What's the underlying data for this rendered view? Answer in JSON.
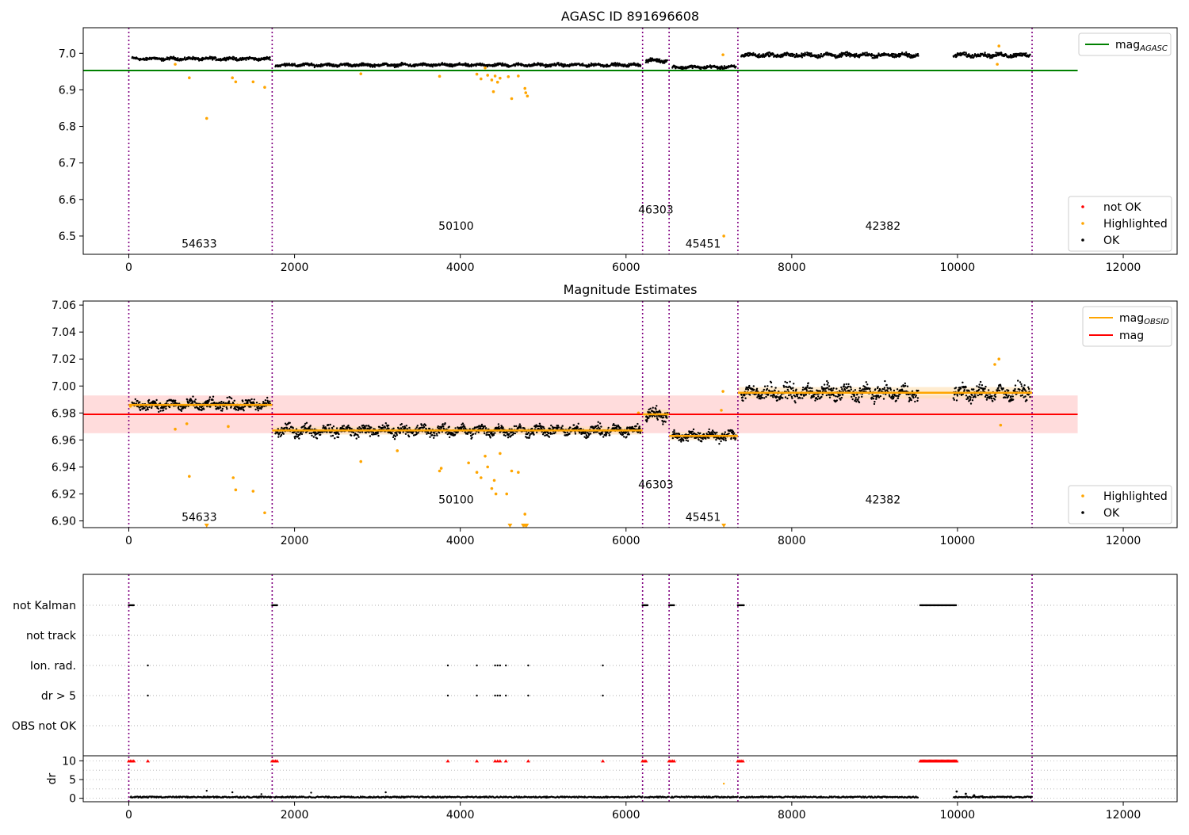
{
  "colors": {
    "ok": "#000000",
    "highlighted": "#ffa500",
    "not_ok": "#ff0000",
    "mag_agasc": "#008000",
    "mag": "#ff0000",
    "mag_obsid": "#ffa500",
    "band_mag": "#ffc0c0",
    "band_obsid": "#ffe0b0",
    "obs_boundary": "#800080",
    "flag_marker": "#ff0000",
    "flag_row_grid": "#b0b0b0"
  },
  "x_axis": {
    "range": [
      -550,
      12650
    ],
    "ticks": [
      0,
      2000,
      4000,
      6000,
      8000,
      10000,
      12000
    ],
    "tick_labels": [
      "0",
      "2000",
      "4000",
      "6000",
      "8000",
      "10000",
      "12000"
    ]
  },
  "observations": [
    {
      "obsid": "54633",
      "start": 0,
      "end": 1730,
      "level_agasc": 6.985,
      "level_est": 6.986,
      "spread": 0.005,
      "label_x": 850
    },
    {
      "obsid": "50100",
      "start": 1730,
      "end": 6200,
      "level_agasc": 6.968,
      "level_est": 6.967,
      "spread": 0.005,
      "label_x": 3950
    },
    {
      "obsid": "46303",
      "start": 6200,
      "end": 6520,
      "level_agasc": 6.98,
      "level_est": 6.979,
      "spread": 0.006,
      "label_x": 6360
    },
    {
      "obsid": "45451",
      "start": 6520,
      "end": 7350,
      "level_agasc": 6.962,
      "level_est": 6.963,
      "spread": 0.005,
      "label_x": 6930
    },
    {
      "obsid": "42382",
      "start": 7350,
      "end": 10900,
      "level_agasc": 6.995,
      "level_est": 6.995,
      "spread": 0.007,
      "label_x": 9100
    }
  ],
  "obs_boundaries": [
    0,
    1730,
    6200,
    6520,
    7350,
    10900
  ],
  "data_gaps": [
    [
      9530,
      9950
    ]
  ],
  "panel1": {
    "title": "AGASC ID 891696608",
    "ylim": [
      6.45,
      7.07
    ],
    "y_ticks": [
      7.0,
      6.9,
      6.8,
      6.7,
      6.6,
      6.5
    ],
    "y_tick_labels": [
      "7.0",
      "6.9",
      "6.8",
      "6.7",
      "6.6",
      "6.5"
    ],
    "mag_agasc_value": 6.953,
    "mag_agasc_range": [
      -550,
      11450
    ],
    "obsid_label_y": [
      6.468,
      6.517,
      6.562,
      6.468,
      6.517
    ],
    "legend_lines": [
      {
        "label": "mag",
        "sub": "AGASC",
        "color_key": "mag_agasc"
      }
    ],
    "legend_markers": [
      {
        "label": "not OK",
        "color_key": "not_ok"
      },
      {
        "label": "Highlighted",
        "color_key": "highlighted"
      },
      {
        "label": "OK",
        "color_key": "ok"
      }
    ],
    "highlighted_points": [
      [
        560,
        6.97
      ],
      [
        730,
        6.933
      ],
      [
        940,
        6.822
      ],
      [
        1250,
        6.933
      ],
      [
        1290,
        6.922
      ],
      [
        1500,
        6.922
      ],
      [
        1640,
        6.907
      ],
      [
        2800,
        6.944
      ],
      [
        3750,
        6.937
      ],
      [
        4200,
        6.943
      ],
      [
        4250,
        6.93
      ],
      [
        4300,
        6.96
      ],
      [
        4330,
        6.94
      ],
      [
        4380,
        6.927
      ],
      [
        4400,
        6.895
      ],
      [
        4420,
        6.938
      ],
      [
        4450,
        6.921
      ],
      [
        4480,
        6.932
      ],
      [
        4580,
        6.936
      ],
      [
        4620,
        6.876
      ],
      [
        4700,
        6.938
      ],
      [
        4780,
        6.904
      ],
      [
        4790,
        6.892
      ],
      [
        4810,
        6.883
      ],
      [
        7170,
        6.996
      ],
      [
        7180,
        6.5
      ],
      [
        10480,
        6.97
      ],
      [
        10500,
        7.02
      ]
    ]
  },
  "panel2": {
    "title": "Magnitude Estimates",
    "ylim": [
      6.895,
      7.063
    ],
    "y_ticks": [
      7.06,
      7.04,
      7.02,
      7.0,
      6.98,
      6.96,
      6.94,
      6.92,
      6.9
    ],
    "y_tick_labels": [
      "7.06",
      "7.04",
      "7.02",
      "7.00",
      "6.98",
      "6.96",
      "6.94",
      "6.92",
      "6.90"
    ],
    "mag_value": 6.979,
    "mag_band": [
      6.965,
      6.993
    ],
    "mag_range": [
      -550,
      11450
    ],
    "obsid_label_y": [
      6.9,
      6.913,
      6.924,
      6.9,
      6.913
    ],
    "legend_lines": [
      {
        "label": "mag",
        "sub": "OBSID",
        "color_key": "mag_obsid"
      },
      {
        "label": "mag",
        "sub": "",
        "color_key": "mag"
      }
    ],
    "legend_markers": [
      {
        "label": "Highlighted",
        "color_key": "highlighted"
      },
      {
        "label": "OK",
        "color_key": "ok"
      }
    ],
    "highlighted_points": [
      [
        20,
        6.985
      ],
      [
        560,
        6.968
      ],
      [
        700,
        6.972
      ],
      [
        730,
        6.933
      ],
      [
        1200,
        6.97
      ],
      [
        1260,
        6.932
      ],
      [
        1290,
        6.923
      ],
      [
        1500,
        6.922
      ],
      [
        1640,
        6.906
      ],
      [
        2800,
        6.944
      ],
      [
        3240,
        6.952
      ],
      [
        3750,
        6.937
      ],
      [
        3770,
        6.939
      ],
      [
        4100,
        6.943
      ],
      [
        4200,
        6.936
      ],
      [
        4250,
        6.932
      ],
      [
        4300,
        6.948
      ],
      [
        4330,
        6.94
      ],
      [
        4380,
        6.924
      ],
      [
        4410,
        6.93
      ],
      [
        4430,
        6.92
      ],
      [
        4480,
        6.95
      ],
      [
        4560,
        6.92
      ],
      [
        4620,
        6.937
      ],
      [
        4700,
        6.936
      ],
      [
        4780,
        6.905
      ],
      [
        6150,
        6.98
      ],
      [
        7150,
        6.982
      ],
      [
        7170,
        6.996
      ],
      [
        10500,
        7.02
      ],
      [
        10520,
        6.971
      ],
      [
        10450,
        7.016
      ]
    ],
    "below_axis_x": [
      940,
      4600,
      4760,
      4780,
      4800,
      7180
    ]
  },
  "panel3": {
    "flag_rows": [
      {
        "label": "not Kalman",
        "ranges": [
          [
            0,
            60
          ],
          [
            1730,
            1800
          ],
          [
            6200,
            6260
          ],
          [
            6520,
            6590
          ],
          [
            7350,
            7430
          ],
          [
            9550,
            9990
          ]
        ],
        "points": []
      },
      {
        "label": "not track",
        "ranges": [],
        "points": []
      },
      {
        "label": "Ion. rad.",
        "ranges": [],
        "points": [
          230,
          3850,
          4200,
          4420,
          4450,
          4480,
          4550,
          4820,
          5720
        ]
      },
      {
        "label": "dr > 5",
        "ranges": [],
        "points": [
          230,
          3850,
          4200,
          4420,
          4450,
          4480,
          4550,
          4820,
          5720
        ]
      },
      {
        "label": "OBS not OK",
        "ranges": [],
        "points": []
      }
    ],
    "dr_ylabel": "dr",
    "dr_ylim": [
      -0.5,
      10.5
    ],
    "dr_ticks": [
      10,
      5,
      0
    ],
    "dr_tick_labels": [
      "10",
      "5",
      "0"
    ],
    "dr_flag_value": 10,
    "dr_flag_x": [
      0,
      20,
      40,
      60,
      230,
      1730,
      1750,
      1770,
      1790,
      3850,
      4200,
      4420,
      4450,
      4480,
      4550,
      4820,
      5720,
      6200,
      6220,
      6240,
      6520,
      6540,
      6560,
      6580,
      7350,
      7370,
      7390,
      7410
    ],
    "dr_flag_ranges": [
      [
        9550,
        9990
      ]
    ],
    "dr_outliers": [
      [
        940,
        2.0
      ],
      [
        1250,
        1.6
      ],
      [
        1600,
        1.1
      ],
      [
        2200,
        1.5
      ],
      [
        3100,
        1.6
      ],
      [
        7180,
        3.9
      ]
    ],
    "dr_bump": [
      [
        9990,
        1.8
      ],
      [
        10100,
        1.2
      ],
      [
        10200,
        0.8
      ],
      [
        10300,
        0.5
      ]
    ]
  }
}
